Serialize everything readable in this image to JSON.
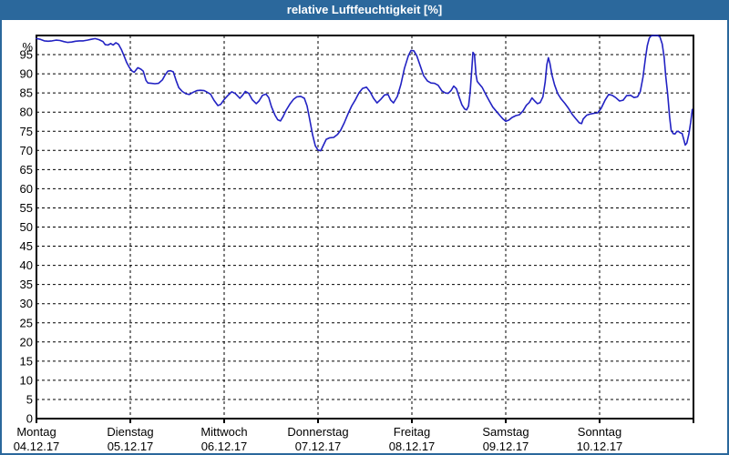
{
  "window": {
    "title": "relative Luftfeuchtigkeit [%]"
  },
  "colors": {
    "titlebar_bg": "#2b689c",
    "titlebar_text": "#ffffff",
    "window_border": "#2b689c",
    "plot_border": "#000000",
    "grid": "#000000",
    "line": "#2222c3",
    "text": "#000000",
    "background": "#ffffff"
  },
  "chart_data": {
    "type": "line",
    "title": "relative Luftfeuchtigkeit [%]",
    "series_name": "relative Luftfeuchtigkeit",
    "unit_label": "%",
    "xlabel": "",
    "ylabel": "",
    "ylim": [
      0,
      100
    ],
    "ytick_step": 5,
    "ytick_label_min": 5,
    "ytick_label_max": 95,
    "zero_label": "0",
    "grid": true,
    "legend": false,
    "x_hours_total": 168,
    "x_categories": [
      {
        "day": "Montag",
        "date": "04.12.17"
      },
      {
        "day": "Dienstag",
        "date": "05.12.17"
      },
      {
        "day": "Mittwoch",
        "date": "06.12.17"
      },
      {
        "day": "Donnerstag",
        "date": "07.12.17"
      },
      {
        "day": "Freitag",
        "date": "08.12.17"
      },
      {
        "day": "Samstag",
        "date": "09.12.17"
      },
      {
        "day": "Sonntag",
        "date": "10.12.17"
      }
    ],
    "points": [
      [
        0,
        99.2
      ],
      [
        1,
        99
      ],
      [
        2,
        98.6
      ],
      [
        3,
        98.5
      ],
      [
        4,
        98.6
      ],
      [
        5,
        98.8
      ],
      [
        6,
        98.7
      ],
      [
        7,
        98.4
      ],
      [
        8,
        98.2
      ],
      [
        9,
        98.3
      ],
      [
        10,
        98.5
      ],
      [
        11,
        98.6
      ],
      [
        12,
        98.6
      ],
      [
        13,
        98.8
      ],
      [
        14,
        99
      ],
      [
        15,
        99.2
      ],
      [
        16,
        98.9
      ],
      [
        17,
        98.4
      ],
      [
        17.6,
        97.6
      ],
      [
        18.3,
        97.5
      ],
      [
        19,
        97.9
      ],
      [
        19.6,
        97.5
      ],
      [
        20.3,
        98.1
      ],
      [
        21,
        97.7
      ],
      [
        21.7,
        96.4
      ],
      [
        22.4,
        94.7
      ],
      [
        23.1,
        92.9
      ],
      [
        23.8,
        91.6
      ],
      [
        24.5,
        90.7
      ],
      [
        25,
        90.4
      ],
      [
        25.9,
        91.6
      ],
      [
        26.7,
        91.2
      ],
      [
        27.3,
        90.7
      ],
      [
        28,
        88.3
      ],
      [
        28.5,
        87.6
      ],
      [
        29.4,
        87.5
      ],
      [
        30.3,
        87.4
      ],
      [
        31.2,
        87.5
      ],
      [
        32.2,
        88.4
      ],
      [
        32.9,
        89.7
      ],
      [
        33.6,
        90.7
      ],
      [
        34.3,
        90.8
      ],
      [
        35,
        90.5
      ],
      [
        35.7,
        88.3
      ],
      [
        36.4,
        86.4
      ],
      [
        37.3,
        85.4
      ],
      [
        38.2,
        84.8
      ],
      [
        39.1,
        84.6
      ],
      [
        40.1,
        85.2
      ],
      [
        41,
        85.6
      ],
      [
        41.9,
        85.7
      ],
      [
        42.9,
        85.6
      ],
      [
        43.8,
        85.1
      ],
      [
        44.5,
        84.7
      ],
      [
        45.4,
        83.1
      ],
      [
        46.4,
        81.7
      ],
      [
        47.1,
        82
      ],
      [
        48,
        83.3
      ],
      [
        48.9,
        84.3
      ],
      [
        49.9,
        85.3
      ],
      [
        50.8,
        84.9
      ],
      [
        52,
        83.6
      ],
      [
        52.7,
        84.4
      ],
      [
        53.4,
        85.4
      ],
      [
        54.3,
        84.9
      ],
      [
        55.2,
        83.2
      ],
      [
        56.2,
        82.2
      ],
      [
        56.9,
        82.9
      ],
      [
        57.8,
        84.4
      ],
      [
        58.7,
        84.7
      ],
      [
        59.4,
        83.8
      ],
      [
        60.1,
        81.4
      ],
      [
        61,
        79.2
      ],
      [
        61.7,
        78
      ],
      [
        62.4,
        77.7
      ],
      [
        63.1,
        78.9
      ],
      [
        63.8,
        80.4
      ],
      [
        64.8,
        82.1
      ],
      [
        65.7,
        83.3
      ],
      [
        66.6,
        84
      ],
      [
        67.6,
        84.1
      ],
      [
        68.5,
        83.6
      ],
      [
        69.2,
        81.6
      ],
      [
        69.9,
        77.9
      ],
      [
        70.6,
        74.1
      ],
      [
        71.3,
        71.2
      ],
      [
        72,
        70.1
      ],
      [
        72.7,
        69.9
      ],
      [
        73.4,
        71.4
      ],
      [
        74.1,
        72.9
      ],
      [
        75,
        73.3
      ],
      [
        76,
        73.4
      ],
      [
        77,
        74.2
      ],
      [
        77.8,
        75.3
      ],
      [
        78.7,
        77.2
      ],
      [
        79.7,
        79.6
      ],
      [
        80.6,
        81.6
      ],
      [
        81.6,
        83.3
      ],
      [
        82.5,
        85.1
      ],
      [
        83.4,
        86.2
      ],
      [
        84.4,
        86.5
      ],
      [
        85.3,
        85.3
      ],
      [
        86.2,
        83.6
      ],
      [
        87.1,
        82.4
      ],
      [
        88.1,
        83.4
      ],
      [
        89,
        84.5
      ],
      [
        89.9,
        84.6
      ],
      [
        90.6,
        83.1
      ],
      [
        91.3,
        82.4
      ],
      [
        92.3,
        84.1
      ],
      [
        93.2,
        87.3
      ],
      [
        94.1,
        91.4
      ],
      [
        95.1,
        94.7
      ],
      [
        95.8,
        96.1
      ],
      [
        96.5,
        96
      ],
      [
        97.2,
        94.8
      ],
      [
        98.1,
        92.2
      ],
      [
        99,
        89.5
      ],
      [
        100,
        88.1
      ],
      [
        100.9,
        87.6
      ],
      [
        101.8,
        87.5
      ],
      [
        102.7,
        87
      ],
      [
        103.7,
        85.5
      ],
      [
        104.6,
        85
      ],
      [
        105.3,
        84.9
      ],
      [
        106,
        85.6
      ],
      [
        106.7,
        86.8
      ],
      [
        107.4,
        86.1
      ],
      [
        108.1,
        83.9
      ],
      [
        108.8,
        81.9
      ],
      [
        109.5,
        80.8
      ],
      [
        110,
        80.6
      ],
      [
        110.5,
        81.6
      ],
      [
        110.9,
        85.1
      ],
      [
        111.3,
        91
      ],
      [
        111.6,
        95.6
      ],
      [
        112,
        95
      ],
      [
        112.4,
        89.7
      ],
      [
        112.7,
        88
      ],
      [
        113.3,
        87.3
      ],
      [
        114,
        86.4
      ],
      [
        114.9,
        84.6
      ],
      [
        115.8,
        82.9
      ],
      [
        116.7,
        81.3
      ],
      [
        117.7,
        80.1
      ],
      [
        118.6,
        79
      ],
      [
        119.3,
        78.2
      ],
      [
        120,
        77.6
      ],
      [
        120.8,
        77.9
      ],
      [
        121.6,
        78.6
      ],
      [
        122.6,
        79.1
      ],
      [
        123.5,
        79.3
      ],
      [
        124.4,
        80.3
      ],
      [
        125.3,
        81.8
      ],
      [
        126,
        82.5
      ],
      [
        126.7,
        83.7
      ],
      [
        127.4,
        82.9
      ],
      [
        128.1,
        82.2
      ],
      [
        128.8,
        82.5
      ],
      [
        129.5,
        84
      ],
      [
        130.1,
        87.9
      ],
      [
        130.5,
        92.4
      ],
      [
        130.9,
        94.2
      ],
      [
        131.3,
        92.7
      ],
      [
        131.8,
        89.8
      ],
      [
        132.5,
        87.1
      ],
      [
        133.3,
        84.8
      ],
      [
        134.2,
        83.4
      ],
      [
        135.1,
        82.3
      ],
      [
        136.1,
        80.9
      ],
      [
        137,
        79.4
      ],
      [
        137.9,
        78.3
      ],
      [
        138.8,
        77.2
      ],
      [
        139.4,
        77
      ],
      [
        139.8,
        78.2
      ],
      [
        140.7,
        79.2
      ],
      [
        141.6,
        79.5
      ],
      [
        142.6,
        79.7
      ],
      [
        143.5,
        79.8
      ],
      [
        144.4,
        81
      ],
      [
        145.4,
        83.1
      ],
      [
        146.3,
        84.6
      ],
      [
        147.2,
        84.4
      ],
      [
        148.1,
        83.8
      ],
      [
        149.1,
        82.9
      ],
      [
        150,
        83.1
      ],
      [
        150.9,
        84.3
      ],
      [
        151.9,
        84.4
      ],
      [
        152.8,
        83.8
      ],
      [
        153.7,
        84
      ],
      [
        154.4,
        85.3
      ],
      [
        155.1,
        89.1
      ],
      [
        155.7,
        93.9
      ],
      [
        156.2,
        97.4
      ],
      [
        156.7,
        99.3
      ],
      [
        157.2,
        99.9
      ],
      [
        158,
        100
      ],
      [
        158.8,
        100
      ],
      [
        159.4,
        99.7
      ],
      [
        160,
        97.8
      ],
      [
        160.5,
        94.4
      ],
      [
        160.9,
        89.6
      ],
      [
        161.4,
        84.7
      ],
      [
        161.9,
        78.8
      ],
      [
        162.3,
        75.3
      ],
      [
        162.8,
        74.4
      ],
      [
        163.3,
        74.3
      ],
      [
        163.7,
        74.9
      ],
      [
        164.1,
        75
      ],
      [
        164.6,
        74.6
      ],
      [
        165.1,
        74.4
      ],
      [
        165.5,
        72.9
      ],
      [
        165.9,
        71.4
      ],
      [
        166.3,
        71.9
      ],
      [
        166.8,
        74.2
      ],
      [
        167.3,
        77.4
      ],
      [
        167.7,
        80.7
      ]
    ]
  }
}
